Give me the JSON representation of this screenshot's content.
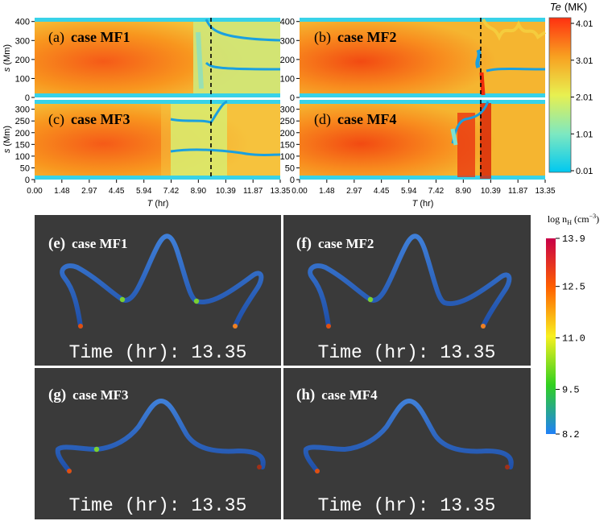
{
  "chart_data": [
    {
      "type": "heatmap",
      "panels": [
        {
          "label": "(a)",
          "case": "case MF1",
          "yticks": [
            "0",
            "100",
            "200",
            "300",
            "400"
          ],
          "ylim": [
            0,
            420
          ]
        },
        {
          "label": "(b)",
          "case": "case MF2",
          "yticks": [
            "0",
            "100",
            "200",
            "300",
            "400"
          ],
          "ylim": [
            0,
            420
          ]
        },
        {
          "label": "(c)",
          "case": "case MF3",
          "yticks": [
            "0",
            "50",
            "100",
            "150",
            "200",
            "250",
            "300"
          ],
          "ylim": [
            0,
            340
          ]
        },
        {
          "label": "(d)",
          "case": "case MF4",
          "yticks": [
            "0",
            "50",
            "100",
            "150",
            "200",
            "250",
            "300"
          ],
          "ylim": [
            0,
            340
          ]
        }
      ],
      "xlabel": "T",
      "xunit": "(hr)",
      "ylabel": "s",
      "yunit": "(Mm)",
      "xticks": [
        "0.00",
        "1.48",
        "2.97",
        "4.45",
        "5.94",
        "7.42",
        "8.90",
        "10.39",
        "11.87",
        "13.35"
      ],
      "xlim": [
        0,
        13.35
      ],
      "dashed_line_T": 9.6,
      "colorbar": {
        "title": "Te",
        "unit": "(MK)",
        "ticks": [
          "0.01",
          "1.01",
          "2.01",
          "3.01",
          "4.01"
        ],
        "range": [
          0.01,
          4.01
        ],
        "colors": [
          "#00c8f0",
          "#7ee8c0",
          "#e8f050",
          "#f8a020",
          "#ff3010"
        ]
      }
    },
    {
      "type": "3d-render",
      "panels": [
        {
          "label": "(e)",
          "case": "case MF1",
          "time": "Time (hr): 13.35"
        },
        {
          "label": "(f)",
          "case": "case MF2",
          "time": "Time (hr): 13.35"
        },
        {
          "label": "(g)",
          "case": "case MF3",
          "time": "Time (hr): 13.35"
        },
        {
          "label": "(h)",
          "case": "case MF4",
          "time": "Time (hr): 13.35"
        }
      ],
      "colorbar": {
        "title_main": "log n",
        "title_sub": "H",
        "title_unit": "(cm",
        "title_exp": "−3",
        "title_close": ")",
        "ticks": [
          "13.9",
          "12.5",
          "11.0",
          "9.5",
          "8.2"
        ],
        "range": [
          8.2,
          13.9
        ],
        "colors": [
          "#c80048",
          "#ff6000",
          "#f8f020",
          "#30d020",
          "#2080f8"
        ]
      }
    }
  ]
}
